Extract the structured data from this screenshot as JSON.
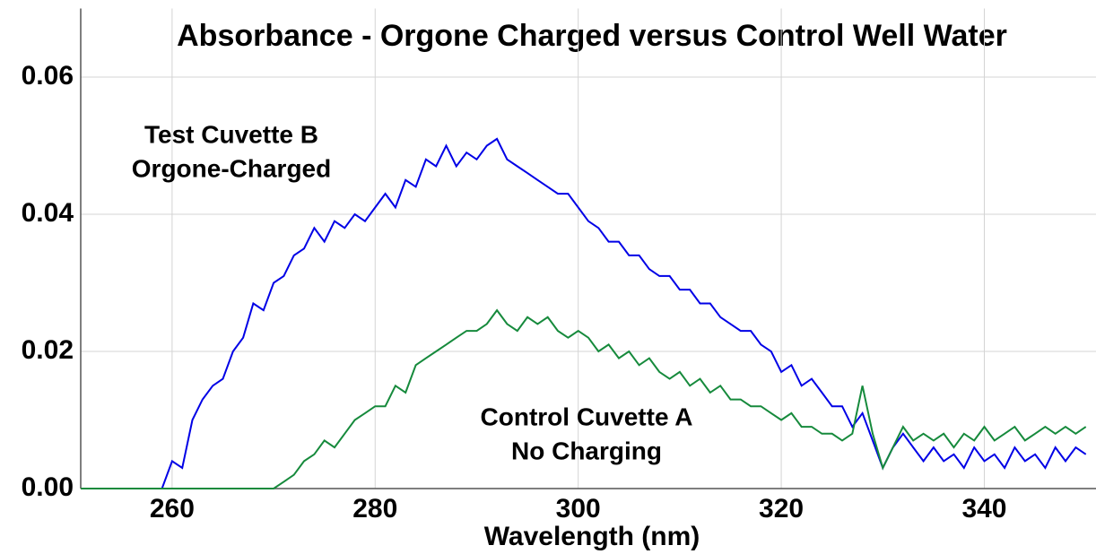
{
  "chart_data": {
    "type": "line",
    "title": "Absorbance - Orgone Charged versus Control Well Water",
    "x_label": "Wavelength (nm)",
    "annotations": [
      [
        "Test Cuvette B",
        "Orgone-Charged"
      ],
      [
        "Control Cuvette A",
        "No Charging"
      ]
    ],
    "x": [
      251,
      252,
      253,
      254,
      255,
      256,
      257,
      258,
      259,
      260,
      261,
      262,
      263,
      264,
      265,
      266,
      267,
      268,
      269,
      270,
      271,
      272,
      273,
      274,
      275,
      276,
      277,
      278,
      279,
      280,
      281,
      282,
      283,
      284,
      285,
      286,
      287,
      288,
      289,
      290,
      291,
      292,
      293,
      294,
      295,
      296,
      297,
      298,
      299,
      300,
      301,
      302,
      303,
      304,
      305,
      306,
      307,
      308,
      309,
      310,
      311,
      312,
      313,
      314,
      315,
      316,
      317,
      318,
      319,
      320,
      321,
      322,
      323,
      324,
      325,
      326,
      327,
      328,
      329,
      330,
      331,
      332,
      333,
      334,
      335,
      336,
      337,
      338,
      339,
      340,
      341,
      342,
      343,
      344,
      345,
      346,
      347,
      348,
      349,
      350
    ],
    "series": [
      {
        "color": "#0000e6",
        "values": [
          0,
          0,
          0,
          0,
          0,
          0,
          0,
          0,
          0,
          0.004,
          0.003,
          0.01,
          0.013,
          0.015,
          0.016,
          0.02,
          0.022,
          0.027,
          0.026,
          0.03,
          0.031,
          0.034,
          0.035,
          0.038,
          0.036,
          0.039,
          0.038,
          0.04,
          0.039,
          0.041,
          0.043,
          0.041,
          0.045,
          0.044,
          0.048,
          0.047,
          0.05,
          0.047,
          0.049,
          0.048,
          0.05,
          0.051,
          0.048,
          0.047,
          0.046,
          0.045,
          0.044,
          0.043,
          0.043,
          0.041,
          0.039,
          0.038,
          0.036,
          0.036,
          0.034,
          0.034,
          0.032,
          0.031,
          0.031,
          0.029,
          0.029,
          0.027,
          0.027,
          0.025,
          0.024,
          0.023,
          0.023,
          0.021,
          0.02,
          0.017,
          0.018,
          0.015,
          0.016,
          0.014,
          0.012,
          0.012,
          0.009,
          0.011,
          0.007,
          0.003,
          0.006,
          0.008,
          0.006,
          0.004,
          0.006,
          0.004,
          0.005,
          0.003,
          0.006,
          0.004,
          0.005,
          0.003,
          0.006,
          0.004,
          0.005,
          0.003,
          0.006,
          0.004,
          0.006,
          0.005
        ]
      },
      {
        "color": "#168a3c",
        "values": [
          0,
          0,
          0,
          0,
          0,
          0,
          0,
          0,
          0,
          0,
          0,
          0,
          0,
          0,
          0,
          0,
          0,
          0,
          0,
          0,
          0.001,
          0.002,
          0.004,
          0.005,
          0.007,
          0.006,
          0.008,
          0.01,
          0.011,
          0.012,
          0.012,
          0.015,
          0.014,
          0.018,
          0.019,
          0.02,
          0.021,
          0.022,
          0.023,
          0.023,
          0.024,
          0.026,
          0.024,
          0.023,
          0.025,
          0.024,
          0.025,
          0.023,
          0.022,
          0.023,
          0.022,
          0.02,
          0.021,
          0.019,
          0.02,
          0.018,
          0.019,
          0.017,
          0.016,
          0.017,
          0.015,
          0.016,
          0.014,
          0.015,
          0.013,
          0.013,
          0.012,
          0.012,
          0.011,
          0.01,
          0.011,
          0.009,
          0.009,
          0.008,
          0.008,
          0.007,
          0.008,
          0.015,
          0.008,
          0.003,
          0.006,
          0.009,
          0.007,
          0.008,
          0.007,
          0.008,
          0.006,
          0.008,
          0.007,
          0.009,
          0.007,
          0.008,
          0.009,
          0.007,
          0.008,
          0.009,
          0.008,
          0.009,
          0.008,
          0.009
        ]
      }
    ],
    "xlim": [
      251,
      351
    ],
    "xticks": [
      260,
      280,
      300,
      320,
      340
    ],
    "ylim": [
      0,
      0.07
    ],
    "yticks": [
      {
        "value": 0,
        "label": "0.00"
      },
      {
        "value": 0.02,
        "label": "0.02"
      },
      {
        "value": 0.04,
        "label": "0.04"
      },
      {
        "value": 0.06,
        "label": "0.06"
      }
    ],
    "grid": true
  }
}
